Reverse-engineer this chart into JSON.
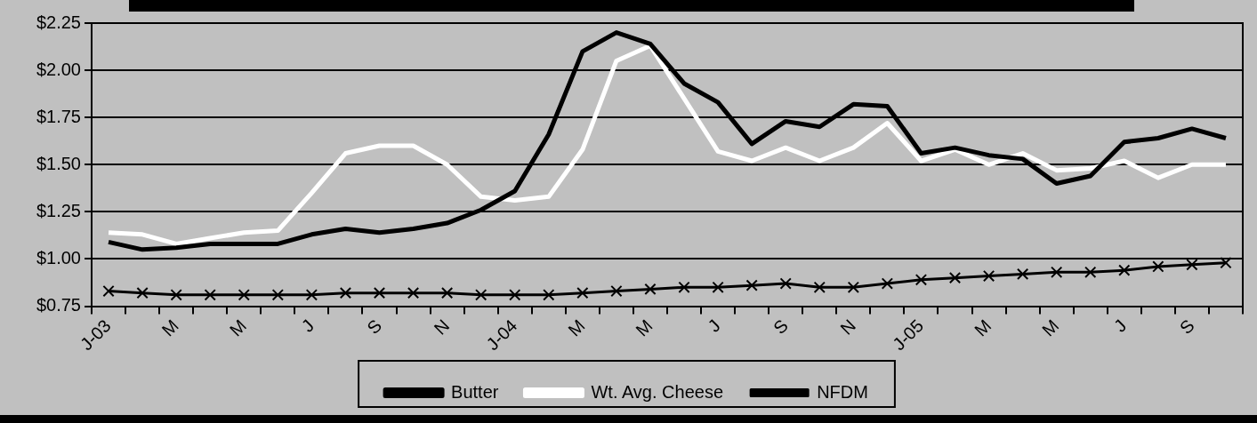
{
  "chart_data": {
    "type": "line",
    "categories": [
      "J-03",
      null,
      "M",
      null,
      "M",
      null,
      "J",
      null,
      "S",
      null,
      "N",
      null,
      "J-04",
      null,
      "M",
      null,
      "M",
      null,
      "J",
      null,
      "S",
      null,
      "N",
      null,
      "J-05",
      null,
      "M",
      null,
      "M",
      null,
      "J",
      null,
      "S",
      null
    ],
    "series": [
      {
        "name": "Butter",
        "color": "#000000",
        "marker": "none",
        "values": [
          1.09,
          1.05,
          1.06,
          1.08,
          1.08,
          1.08,
          1.13,
          1.16,
          1.14,
          1.16,
          1.19,
          1.26,
          1.36,
          1.66,
          2.1,
          2.2,
          2.14,
          1.93,
          1.83,
          1.61,
          1.73,
          1.7,
          1.82,
          1.81,
          1.56,
          1.59,
          1.55,
          1.53,
          1.4,
          1.44,
          1.62,
          1.64,
          1.69,
          1.64
        ]
      },
      {
        "name": "Wt. Avg. Cheese",
        "color": "#ffffff",
        "marker": "none",
        "values": [
          1.14,
          1.13,
          1.08,
          1.11,
          1.14,
          1.15,
          1.35,
          1.56,
          1.6,
          1.6,
          1.5,
          1.33,
          1.31,
          1.33,
          1.58,
          2.05,
          2.13,
          1.85,
          1.57,
          1.52,
          1.59,
          1.52,
          1.59,
          1.72,
          1.52,
          1.58,
          1.5,
          1.56,
          1.47,
          1.48,
          1.52,
          1.43,
          1.5,
          1.5
        ]
      },
      {
        "name": "NFDM",
        "color": "#000000",
        "marker": "cross",
        "values": [
          0.83,
          0.82,
          0.81,
          0.81,
          0.81,
          0.81,
          0.81,
          0.82,
          0.82,
          0.82,
          0.82,
          0.81,
          0.81,
          0.81,
          0.82,
          0.83,
          0.84,
          0.85,
          0.85,
          0.86,
          0.87,
          0.85,
          0.85,
          0.87,
          0.89,
          0.9,
          0.91,
          0.92,
          0.93,
          0.93,
          0.94,
          0.96,
          0.97,
          0.98
        ]
      }
    ],
    "ylim": [
      0.75,
      2.25
    ],
    "yticks": [
      {
        "value": 0.75,
        "label": "$0.75"
      },
      {
        "value": 1.0,
        "label": "$1.00"
      },
      {
        "value": 1.25,
        "label": "$1.25"
      },
      {
        "value": 1.5,
        "label": "$1.50"
      },
      {
        "value": 1.75,
        "label": "$1.75"
      },
      {
        "value": 2.0,
        "label": "$2.00"
      },
      {
        "value": 2.25,
        "label": "$2.25"
      }
    ],
    "grid": "y",
    "legend": "bottom"
  }
}
